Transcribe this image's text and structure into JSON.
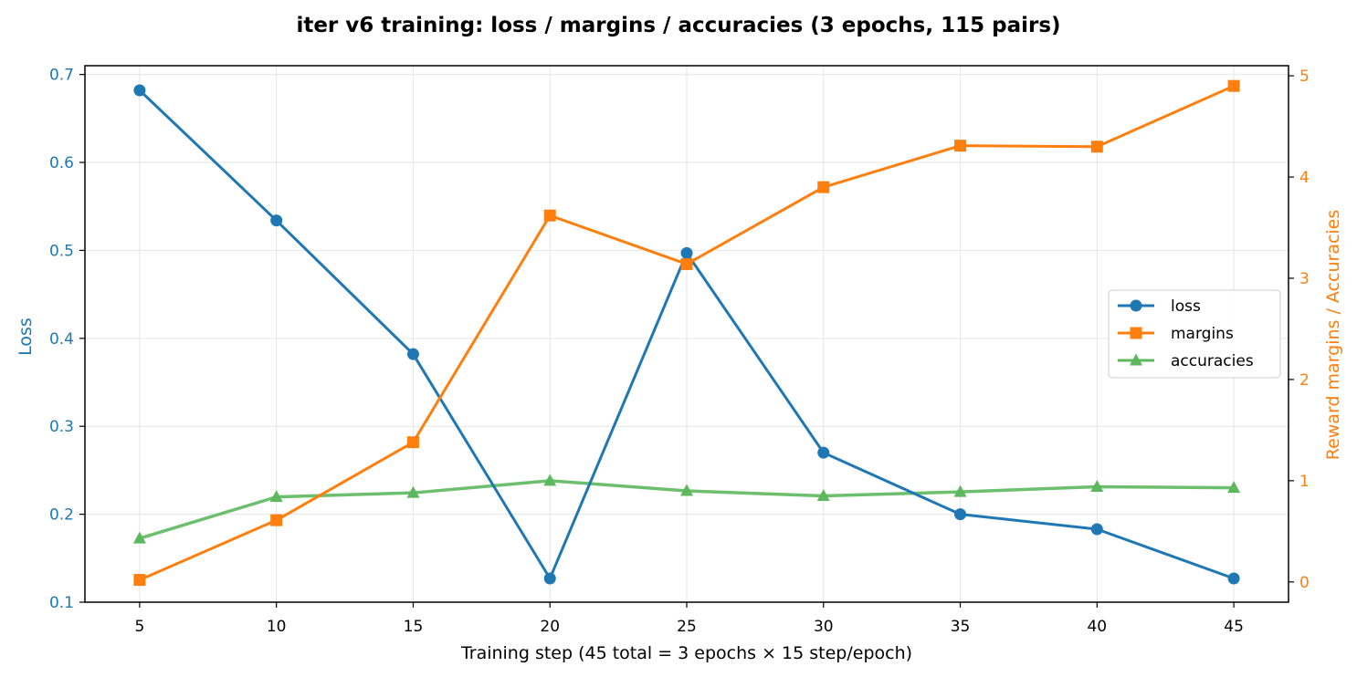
{
  "chart_data": {
    "type": "line",
    "title": "iter v6 training: loss / margins / accuracies (3 epochs, 115 pairs)",
    "xlabel": "Training step (45 total = 3 epochs × 15 step/epoch)",
    "ylabel_left": "Loss",
    "ylabel_right": "Reward margins / Accuracies",
    "x": [
      5,
      10,
      15,
      20,
      25,
      30,
      35,
      40,
      45
    ],
    "x_ticks": [
      5,
      10,
      15,
      20,
      25,
      30,
      35,
      40,
      45
    ],
    "xlim": [
      3,
      47
    ],
    "ylim_left": [
      0.1,
      0.71
    ],
    "ylim_right": [
      -0.2,
      5.1
    ],
    "y_ticks_left": [
      0.1,
      0.2,
      0.3,
      0.4,
      0.5,
      0.6,
      0.7
    ],
    "y_ticks_right": [
      0,
      1,
      2,
      3,
      4,
      5
    ],
    "grid": true,
    "legend_position": "center-right",
    "series": [
      {
        "name": "loss",
        "axis": "left",
        "color": "#1f77b4",
        "marker": "circle",
        "values": [
          0.682,
          0.534,
          0.382,
          0.127,
          0.497,
          0.27,
          0.2,
          0.183,
          0.127
        ]
      },
      {
        "name": "margins",
        "axis": "right",
        "color": "#ff7f0e",
        "marker": "square",
        "values": [
          0.02,
          0.61,
          1.38,
          3.62,
          3.14,
          3.9,
          4.31,
          4.3,
          4.9
        ]
      },
      {
        "name": "accuracies",
        "axis": "right",
        "color": "#5cb85c",
        "marker": "triangle",
        "values": [
          0.43,
          0.84,
          0.88,
          1.0,
          0.9,
          0.85,
          0.89,
          0.94,
          0.93
        ]
      }
    ]
  }
}
